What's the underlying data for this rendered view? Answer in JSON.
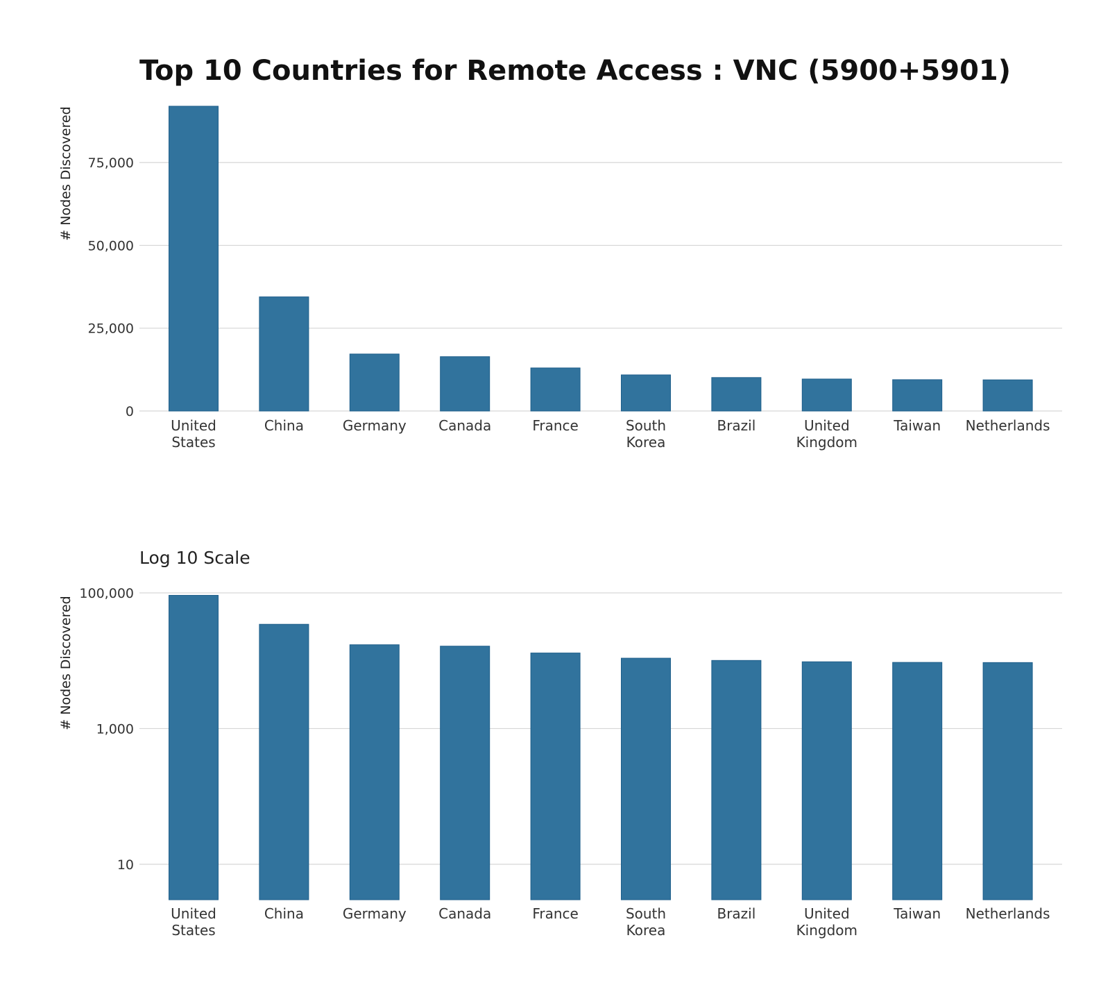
{
  "chart_data": [
    {
      "type": "bar",
      "title": "Top 10 Countries for Remote Access : VNC (5900+5901)",
      "xlabel": "",
      "ylabel": "# Nodes Discovered",
      "categories": [
        [
          "United",
          "States"
        ],
        [
          "China"
        ],
        [
          "Germany"
        ],
        [
          "Canada"
        ],
        [
          "France"
        ],
        [
          "South",
          "Korea"
        ],
        [
          "Brazil"
        ],
        [
          "United",
          "Kingdom"
        ],
        [
          "Taiwan"
        ],
        [
          "Netherlands"
        ]
      ],
      "values": [
        92000,
        34450,
        17200,
        16400,
        13000,
        10900,
        10100,
        9650,
        9450,
        9400
      ],
      "ylim": [
        0,
        92000
      ],
      "yticks": [
        0,
        25000,
        50000,
        75000
      ],
      "ytick_labels": [
        "0",
        "25,000",
        "50,000",
        "75,000"
      ],
      "scale": "linear",
      "grid": true,
      "bar_color": "#31739d"
    },
    {
      "type": "bar",
      "title": "Log 10 Scale",
      "xlabel": "",
      "ylabel": "# Nodes Discovered",
      "categories": [
        [
          "United",
          "States"
        ],
        [
          "China"
        ],
        [
          "Germany"
        ],
        [
          "Canada"
        ],
        [
          "France"
        ],
        [
          "South",
          "Korea"
        ],
        [
          "Brazil"
        ],
        [
          "United",
          "Kingdom"
        ],
        [
          "Taiwan"
        ],
        [
          "Netherlands"
        ]
      ],
      "values": [
        92000,
        34450,
        17200,
        16400,
        13000,
        10900,
        10100,
        9650,
        9450,
        9400
      ],
      "ylim": [
        3,
        100000
      ],
      "yticks": [
        10,
        1000,
        100000
      ],
      "ytick_labels": [
        "10",
        "1,000",
        "100,000"
      ],
      "scale": "log10",
      "grid": true,
      "bar_color": "#31739d"
    }
  ]
}
